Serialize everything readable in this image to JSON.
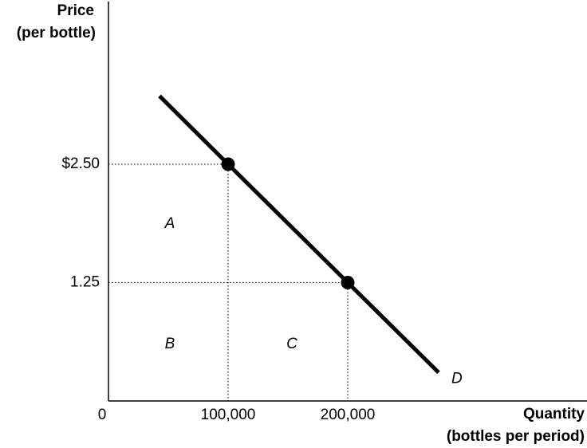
{
  "chart_data": {
    "type": "line",
    "y_title": [
      "Price",
      "(per bottle)"
    ],
    "x_title": [
      "Quantity",
      "(bottles per period)"
    ],
    "xlim": [
      0,
      400000
    ],
    "ylim": [
      0,
      4.2
    ],
    "xticks": [
      0,
      {
        "value": 100000,
        "label": "100,000"
      },
      {
        "value": 200000,
        "label": "200,000"
      }
    ],
    "yticks": [
      {
        "value": 2.5,
        "label": "$2.50"
      },
      1.25
    ],
    "series": [
      {
        "name": "D",
        "color": "#000000",
        "x": [
          42667,
          100000,
          200000,
          276000
        ],
        "values": [
          3.22,
          2.5,
          1.25,
          0.3
        ]
      }
    ],
    "points": {
      "x": [
        100000,
        200000
      ],
      "values": [
        2.5,
        1.25
      ],
      "color": "#000000"
    },
    "region_labels": [
      "A",
      "B",
      "C"
    ]
  }
}
